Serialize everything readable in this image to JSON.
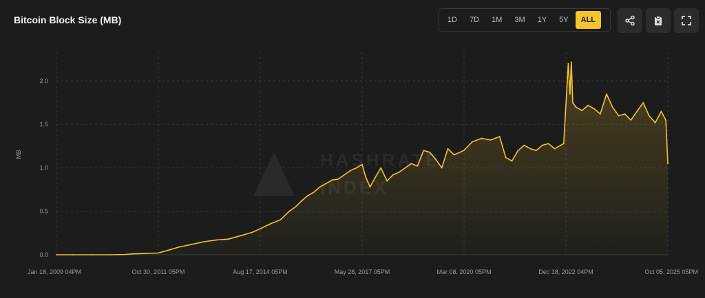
{
  "header": {
    "title": "Bitcoin Block Size (MB)",
    "ranges": [
      "1D",
      "7D",
      "1M",
      "3M",
      "1Y",
      "5Y",
      "ALL"
    ],
    "active_range": "ALL",
    "share_icon": "share-icon",
    "clipboard_icon": "clipboard-icon",
    "fullscreen_icon": "fullscreen-icon"
  },
  "watermark": {
    "line1": "HASHRATE",
    "line2": "INDEX"
  },
  "colors": {
    "background": "#1c1c1c",
    "line": "#f4c430",
    "grid": "#3a3a3a",
    "tick_text": "#9a9a9a"
  },
  "chart_data": {
    "type": "area",
    "title": "Bitcoin Block Size (MB)",
    "xlabel": "",
    "ylabel": "MB",
    "ylim": [
      0,
      2.3
    ],
    "xlim": [
      "2009-01-18",
      "2025-10-05"
    ],
    "y_ticks": [
      "0.0",
      "0.5",
      "1.0",
      "1.5",
      "2.0"
    ],
    "x_ticks": [
      "Jan 18, 2009 04PM",
      "Oct 30, 2011 05PM",
      "Aug 17, 2014 05PM",
      "May 28, 2017 05PM",
      "Mar 08, 2020 05PM",
      "Dec 18, 2022 04PM",
      "Oct 05, 2025 05PM"
    ],
    "grid": true,
    "series": [
      {
        "x": [
          "2009-01-18",
          "2009-07-01",
          "2010-01-01",
          "2010-07-01",
          "2010-12-01",
          "2011-03-01",
          "2011-10-30",
          "2012-02-01",
          "2012-06-01",
          "2012-10-01",
          "2013-02-01",
          "2013-06-01",
          "2013-10-01",
          "2014-02-01",
          "2014-06-01",
          "2014-08-17",
          "2014-12-01",
          "2015-03-01",
          "2015-06-01",
          "2015-08-01",
          "2015-10-01",
          "2015-12-01",
          "2016-02-01",
          "2016-04-01",
          "2016-06-01",
          "2016-08-01",
          "2016-10-01",
          "2016-12-01",
          "2017-02-01",
          "2017-04-01",
          "2017-05-28",
          "2017-07-01",
          "2017-08-15",
          "2017-10-01",
          "2017-12-01",
          "2018-02-01",
          "2018-04-01",
          "2018-06-01",
          "2018-08-01",
          "2018-10-01",
          "2018-12-01",
          "2019-02-01",
          "2019-04-01",
          "2019-06-01",
          "2019-08-01",
          "2019-10-01",
          "2019-12-01",
          "2020-03-08",
          "2020-06-01",
          "2020-09-01",
          "2020-12-01",
          "2021-03-01",
          "2021-05-01",
          "2021-07-01",
          "2021-09-01",
          "2021-11-01",
          "2022-01-01",
          "2022-03-01",
          "2022-05-01",
          "2022-07-01",
          "2022-09-01",
          "2022-12-01",
          "2023-01-15",
          "2023-02-01",
          "2023-02-15",
          "2023-03-01",
          "2023-04-01",
          "2023-06-01",
          "2023-08-01",
          "2023-10-01",
          "2023-12-01",
          "2024-02-01",
          "2024-04-01",
          "2024-06-01",
          "2024-08-01",
          "2024-10-01",
          "2024-12-01",
          "2025-02-01",
          "2025-04-01",
          "2025-06-01",
          "2025-08-01",
          "2025-09-15",
          "2025-10-05"
        ],
        "y": [
          0.0,
          0.0,
          0.0,
          0.0,
          0.002,
          0.01,
          0.02,
          0.05,
          0.09,
          0.12,
          0.15,
          0.17,
          0.18,
          0.22,
          0.26,
          0.3,
          0.36,
          0.4,
          0.5,
          0.55,
          0.62,
          0.68,
          0.72,
          0.78,
          0.82,
          0.86,
          0.87,
          0.92,
          0.97,
          1.0,
          1.04,
          0.9,
          0.78,
          0.88,
          1.0,
          0.85,
          0.92,
          0.95,
          1.0,
          1.05,
          1.02,
          1.2,
          1.18,
          1.1,
          1.0,
          1.22,
          1.15,
          1.2,
          1.3,
          1.34,
          1.32,
          1.36,
          1.12,
          1.08,
          1.2,
          1.26,
          1.22,
          1.2,
          1.26,
          1.28,
          1.22,
          1.28,
          2.2,
          1.85,
          2.22,
          1.75,
          1.7,
          1.66,
          1.72,
          1.68,
          1.62,
          1.85,
          1.7,
          1.6,
          1.62,
          1.55,
          1.65,
          1.75,
          1.6,
          1.52,
          1.65,
          1.55,
          1.05
        ]
      }
    ]
  }
}
